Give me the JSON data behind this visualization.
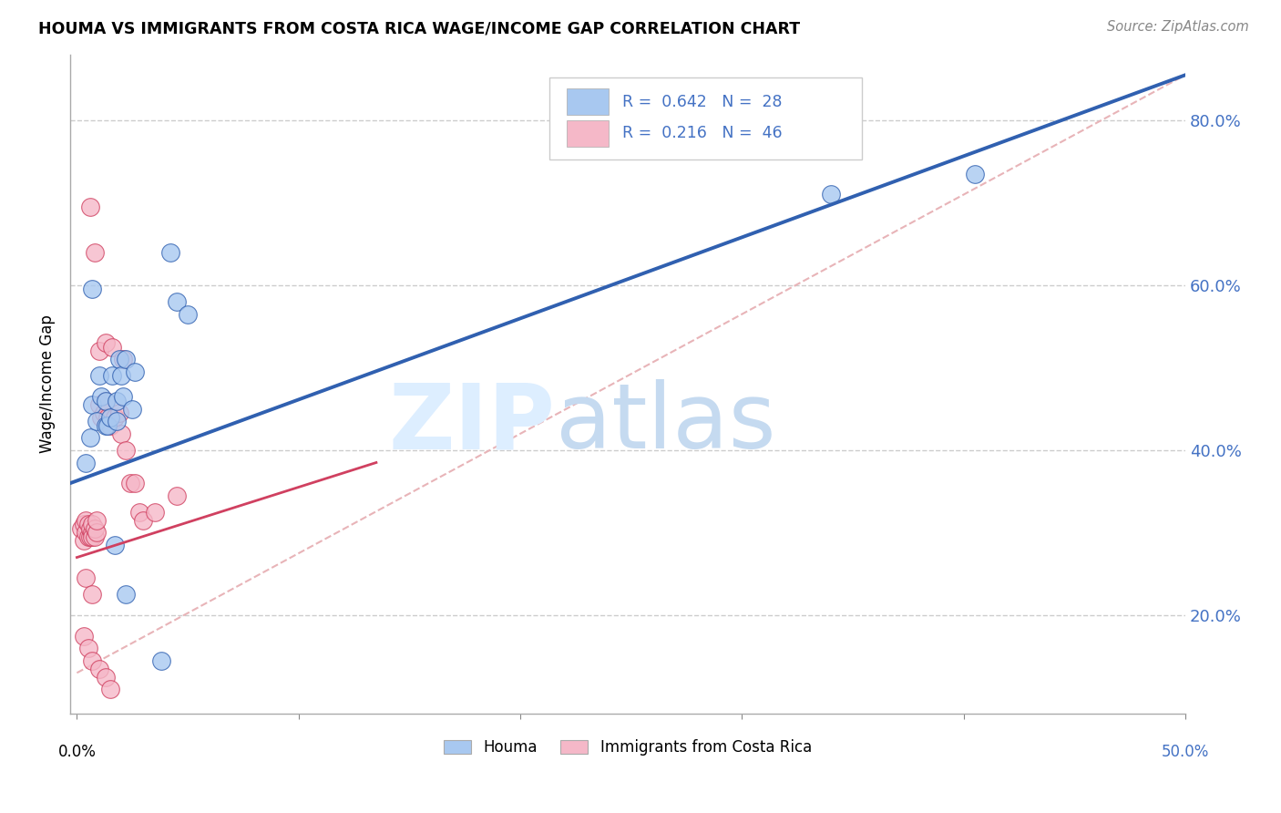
{
  "title": "HOUMA VS IMMIGRANTS FROM COSTA RICA WAGE/INCOME GAP CORRELATION CHART",
  "source": "Source: ZipAtlas.com",
  "ylabel": "Wage/Income Gap",
  "ytick_vals": [
    0.2,
    0.4,
    0.6,
    0.8
  ],
  "ytick_labels": [
    "20.0%",
    "40.0%",
    "60.0%",
    "80.0%"
  ],
  "legend_blue_r": "0.642",
  "legend_blue_n": "28",
  "legend_pink_r": "0.216",
  "legend_pink_n": "46",
  "blue_color": "#a8c8f0",
  "pink_color": "#f5b8c8",
  "blue_line_color": "#3060b0",
  "pink_line_color": "#d04060",
  "blue_scatter": [
    [
      0.004,
      0.385
    ],
    [
      0.006,
      0.415
    ],
    [
      0.007,
      0.455
    ],
    [
      0.009,
      0.435
    ],
    [
      0.01,
      0.49
    ],
    [
      0.011,
      0.465
    ],
    [
      0.013,
      0.46
    ],
    [
      0.013,
      0.43
    ],
    [
      0.014,
      0.43
    ],
    [
      0.015,
      0.44
    ],
    [
      0.016,
      0.49
    ],
    [
      0.018,
      0.435
    ],
    [
      0.018,
      0.46
    ],
    [
      0.019,
      0.51
    ],
    [
      0.02,
      0.49
    ],
    [
      0.021,
      0.465
    ],
    [
      0.022,
      0.51
    ],
    [
      0.025,
      0.45
    ],
    [
      0.026,
      0.495
    ],
    [
      0.007,
      0.595
    ],
    [
      0.042,
      0.64
    ],
    [
      0.045,
      0.58
    ],
    [
      0.05,
      0.565
    ],
    [
      0.017,
      0.285
    ],
    [
      0.022,
      0.225
    ],
    [
      0.038,
      0.145
    ],
    [
      0.34,
      0.71
    ],
    [
      0.405,
      0.735
    ]
  ],
  "pink_scatter": [
    [
      0.002,
      0.305
    ],
    [
      0.003,
      0.29
    ],
    [
      0.003,
      0.31
    ],
    [
      0.004,
      0.3
    ],
    [
      0.004,
      0.315
    ],
    [
      0.005,
      0.295
    ],
    [
      0.005,
      0.31
    ],
    [
      0.006,
      0.295
    ],
    [
      0.006,
      0.305
    ],
    [
      0.007,
      0.3
    ],
    [
      0.007,
      0.295
    ],
    [
      0.007,
      0.31
    ],
    [
      0.008,
      0.295
    ],
    [
      0.008,
      0.305
    ],
    [
      0.009,
      0.3
    ],
    [
      0.009,
      0.315
    ],
    [
      0.01,
      0.455
    ],
    [
      0.011,
      0.44
    ],
    [
      0.012,
      0.445
    ],
    [
      0.013,
      0.46
    ],
    [
      0.014,
      0.44
    ],
    [
      0.015,
      0.43
    ],
    [
      0.017,
      0.44
    ],
    [
      0.019,
      0.445
    ],
    [
      0.02,
      0.42
    ],
    [
      0.022,
      0.4
    ],
    [
      0.024,
      0.36
    ],
    [
      0.026,
      0.36
    ],
    [
      0.028,
      0.325
    ],
    [
      0.03,
      0.315
    ],
    [
      0.035,
      0.325
    ],
    [
      0.045,
      0.345
    ],
    [
      0.006,
      0.695
    ],
    [
      0.008,
      0.64
    ],
    [
      0.01,
      0.52
    ],
    [
      0.013,
      0.53
    ],
    [
      0.016,
      0.525
    ],
    [
      0.021,
      0.51
    ],
    [
      0.003,
      0.175
    ],
    [
      0.005,
      0.16
    ],
    [
      0.007,
      0.145
    ],
    [
      0.01,
      0.135
    ],
    [
      0.013,
      0.125
    ],
    [
      0.015,
      0.11
    ],
    [
      0.004,
      0.245
    ],
    [
      0.007,
      0.225
    ]
  ],
  "xmin": -0.003,
  "xmax": 0.5,
  "ymin": 0.08,
  "ymax": 0.88,
  "blue_line_x": [
    -0.003,
    0.5
  ],
  "blue_line_y": [
    0.36,
    0.855
  ],
  "pink_line_x": [
    0.0,
    0.135
  ],
  "pink_line_y": [
    0.27,
    0.385
  ],
  "dashed_line_x": [
    0.0,
    0.5
  ],
  "dashed_line_y": [
    0.13,
    0.855
  ]
}
